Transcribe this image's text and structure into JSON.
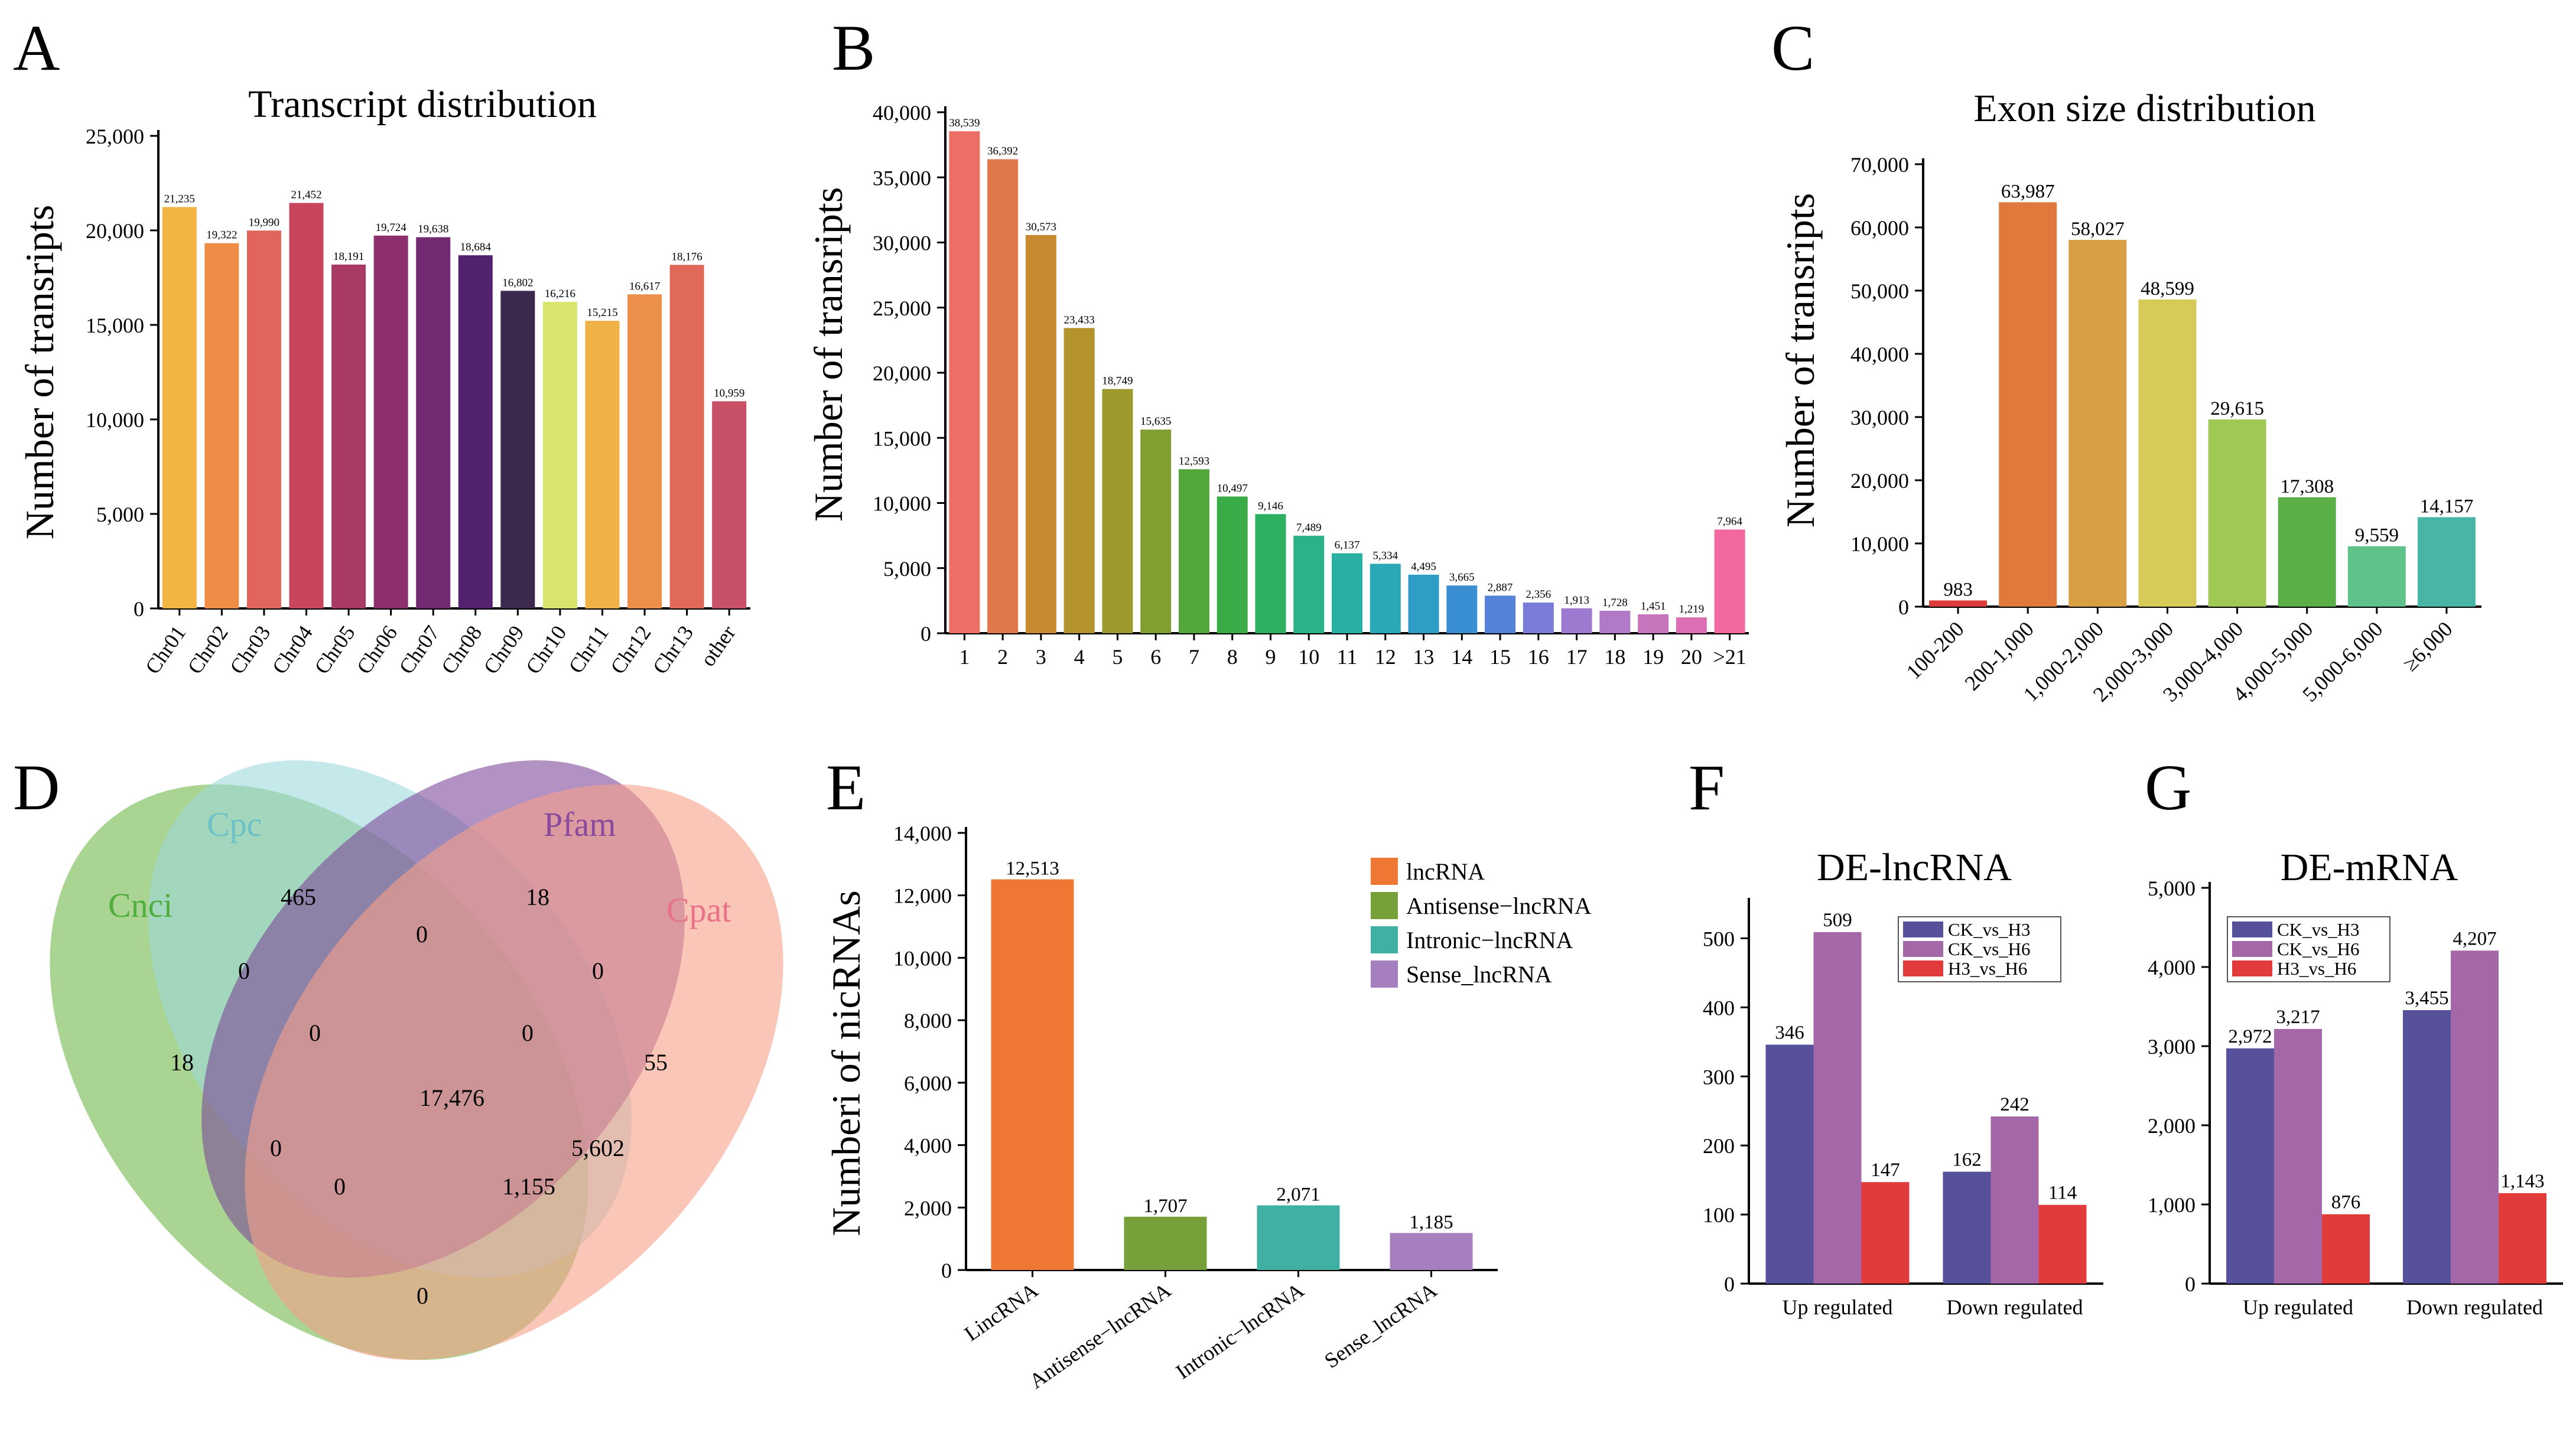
{
  "panels": {
    "A": {
      "letter": "A"
    },
    "B": {
      "letter": "B"
    },
    "C": {
      "letter": "C"
    },
    "D": {
      "letter": "D"
    },
    "E": {
      "letter": "E"
    },
    "F": {
      "letter": "F"
    },
    "G": {
      "letter": "G"
    }
  },
  "chart_data": [
    {
      "id": "A",
      "type": "bar",
      "title": "Transcript distribution",
      "xlabel": "",
      "ylabel": "Number of transripts",
      "ylim": [
        0,
        25000
      ],
      "yticks": [
        0,
        5000,
        10000,
        15000,
        20000,
        25000
      ],
      "ytick_labels": [
        "0",
        "5,000",
        "10,000",
        "15,000",
        "20,000",
        "25,000"
      ],
      "categories": [
        "Chr01",
        "Chr02",
        "Chr03",
        "Chr04",
        "Chr05",
        "Chr06",
        "Chr07",
        "Chr08",
        "Chr09",
        "Chr10",
        "Chr11",
        "Chr12",
        "Chr13",
        "other"
      ],
      "values": [
        21235,
        19322,
        19990,
        21452,
        18191,
        19724,
        19638,
        18684,
        16802,
        16216,
        15215,
        16617,
        18176,
        10959
      ],
      "value_labels": [
        "21,235",
        "19,322",
        "19,990",
        "21,452",
        "18,191",
        "19,724",
        "19,638",
        "18,684",
        "16,802",
        "16,216",
        "15,215",
        "16,617",
        "18,176",
        "10,959"
      ],
      "colors": [
        "#f2b541",
        "#ef8d47",
        "#e0655a",
        "#c8465d",
        "#a93a66",
        "#8e2f6d",
        "#722a72",
        "#52226f",
        "#3b2a4e",
        "#d8e46b",
        "#f0b246",
        "#ec8f4a",
        "#e06a5a",
        "#c95167"
      ]
    },
    {
      "id": "B",
      "type": "bar",
      "title": "",
      "xlabel": "",
      "ylabel": "Number of transripts",
      "ylim": [
        0,
        40000
      ],
      "yticks": [
        0,
        5000,
        10000,
        15000,
        20000,
        25000,
        30000,
        35000,
        40000
      ],
      "ytick_labels": [
        "0",
        "5,000",
        "10,000",
        "15,000",
        "20,000",
        "25,000",
        "30,000",
        "35,000",
        "40,000"
      ],
      "categories": [
        "1",
        "2",
        "3",
        "4",
        "5",
        "6",
        "7",
        "8",
        "9",
        "10",
        "11",
        "12",
        "13",
        "14",
        "15",
        "16",
        "17",
        "18",
        "19",
        "20",
        ">21"
      ],
      "values": [
        38539,
        36392,
        30573,
        23433,
        18749,
        15635,
        12593,
        10497,
        9146,
        7489,
        6137,
        5334,
        4495,
        3665,
        2887,
        2356,
        1913,
        1728,
        1451,
        1219,
        7964
      ],
      "value_labels": [
        "38,539",
        "36,392",
        "30,573",
        "23,433",
        "18,749",
        "15,635",
        "12,593",
        "10,497",
        "9,146",
        "7,489",
        "6,137",
        "5,334",
        "4,495",
        "3,665",
        "2,887",
        "2,356",
        "1,913",
        "1,728",
        "1,451",
        "1,219",
        "7,964"
      ],
      "colors": [
        "#ec6f66",
        "#e0784c",
        "#c9892f",
        "#b4922c",
        "#9c9a2d",
        "#7fa031",
        "#54a73a",
        "#3aac47",
        "#2eb063",
        "#2bb289",
        "#29b0a3",
        "#2aa8b5",
        "#2e9ec6",
        "#3a8fd2",
        "#5482d8",
        "#7a7bd6",
        "#9b7ad0",
        "#b279c8",
        "#c775bd",
        "#dc6fb3",
        "#f268a0"
      ]
    },
    {
      "id": "C",
      "type": "bar",
      "title": "Exon size distribution",
      "xlabel": "",
      "ylabel": "Number of transripts",
      "ylim": [
        0,
        70000
      ],
      "yticks": [
        0,
        10000,
        20000,
        30000,
        40000,
        50000,
        60000,
        70000
      ],
      "ytick_labels": [
        "0",
        "10,000",
        "20,000",
        "30,000",
        "40,000",
        "50,000",
        "60,000",
        "70,000"
      ],
      "categories": [
        "100-200",
        "200-1,000",
        "1,000-2,000",
        "2,000-3,000",
        "3,000-4,000",
        "4,000-5,000",
        "5,000-6,000",
        "≥6,000"
      ],
      "values": [
        983,
        63987,
        58027,
        48599,
        29615,
        17308,
        9559,
        14157
      ],
      "value_labels": [
        "983",
        "63,987",
        "58,027",
        "48,599",
        "29,615",
        "17,308",
        "9,559",
        "14,157"
      ],
      "colors": [
        "#de3b3b",
        "#e1793d",
        "#d99f43",
        "#d6cb56",
        "#9fc855",
        "#5aaf47",
        "#5ec28a",
        "#49b5a6"
      ]
    },
    {
      "id": "E",
      "type": "bar",
      "title": "",
      "xlabel": "",
      "ylabel": "Numberi of nicRNAs",
      "ylim": [
        0,
        14000
      ],
      "yticks": [
        0,
        2000,
        4000,
        6000,
        8000,
        10000,
        12000,
        14000
      ],
      "ytick_labels": [
        "0",
        "2,000",
        "4,000",
        "6,000",
        "8,000",
        "10,000",
        "12,000",
        "14,000"
      ],
      "categories": [
        "LincRNA",
        "Antisense−lncRNA",
        "Intronic−lncRNA",
        "Sense_lncRNA"
      ],
      "values": [
        12513,
        1707,
        2071,
        1185
      ],
      "value_labels": [
        "12,513",
        "1,707",
        "2,071",
        "1,185"
      ],
      "colors": [
        "#ed7733",
        "#77a03a",
        "#3fb0a2",
        "#a57fbe"
      ],
      "legend": [
        "lncRNA",
        "Antisense−lncRNA",
        "Intronic−lncRNA",
        "Sense_lncRNA"
      ],
      "legend_position": "top-right"
    },
    {
      "id": "F",
      "type": "bar",
      "title": "DE-lncRNA",
      "xlabel": "",
      "ylabel": "",
      "ylim": [
        0,
        550
      ],
      "yticks": [
        0,
        100,
        200,
        300,
        400,
        500
      ],
      "ytick_labels": [
        "0",
        "100",
        "200",
        "300",
        "400",
        "500"
      ],
      "categories": [
        "Up regulated",
        "Down regulated"
      ],
      "series": [
        {
          "name": "CK_vs_H3",
          "values": [
            346,
            162
          ],
          "labels": [
            "346",
            "162"
          ],
          "color": "#56519a"
        },
        {
          "name": "CK_vs_H6",
          "values": [
            509,
            242
          ],
          "labels": [
            "509",
            "242"
          ],
          "color": "#a467a7"
        },
        {
          "name": "H3_vs_H6",
          "values": [
            147,
            114
          ],
          "labels": [
            "147",
            "114"
          ],
          "color": "#e23b3b"
        }
      ],
      "legend_position": "top-center"
    },
    {
      "id": "G",
      "type": "bar",
      "title": "DE-mRNA",
      "xlabel": "",
      "ylabel": "",
      "ylim": [
        0,
        5000
      ],
      "yticks": [
        0,
        1000,
        2000,
        3000,
        4000,
        5000
      ],
      "ytick_labels": [
        "0",
        "1,000",
        "2,000",
        "3,000",
        "4,000",
        "5,000"
      ],
      "categories": [
        "Up regulated",
        "Down regulated"
      ],
      "series": [
        {
          "name": "CK_vs_H3",
          "values": [
            2972,
            3455
          ],
          "labels": [
            "2,972",
            "3,455"
          ],
          "color": "#56519a"
        },
        {
          "name": "CK_vs_H6",
          "values": [
            3217,
            4207
          ],
          "labels": [
            "3,217",
            "4,207"
          ],
          "color": "#a467a7"
        },
        {
          "name": "H3_vs_H6",
          "values": [
            876,
            1143
          ],
          "labels": [
            "876",
            "1,143"
          ],
          "color": "#e23b3b"
        }
      ],
      "legend_position": "top-left"
    }
  ],
  "venn": {
    "sets": [
      {
        "name": "Cnci",
        "color": "#6bb84c",
        "fill": "#8cc66e"
      },
      {
        "name": "Cpc",
        "color": "#7fc8cd",
        "fill": "#9fd8dc"
      },
      {
        "name": "Pfam",
        "color": "#8a4a9b",
        "fill": "#8c5aa4"
      },
      {
        "name": "Cpat",
        "color": "#e9718a",
        "fill": "#f5a794"
      }
    ],
    "regions": [
      {
        "region": "Cpc only",
        "value": "465"
      },
      {
        "region": "Pfam only",
        "value": "18"
      },
      {
        "region": "Cnci only",
        "value": "18"
      },
      {
        "region": "Cpat only",
        "value": "55"
      },
      {
        "region": "Cpc∩Pfam",
        "value": "0"
      },
      {
        "region": "Cnci∩Cpc",
        "value": "0"
      },
      {
        "region": "Pfam∩Cpat",
        "value": "0"
      },
      {
        "region": "Cnci∩Cpc∩Pfam",
        "value": "0"
      },
      {
        "region": "Cpc∩Pfam∩Cpat",
        "value": "0"
      },
      {
        "region": "All four",
        "value": "17,476"
      },
      {
        "region": "Cnci∩Pfam",
        "value": "0"
      },
      {
        "region": "Pfam∩Cpat∩Cnci",
        "value": "0"
      },
      {
        "region": "Cpc∩Cpat",
        "value": "5,602"
      },
      {
        "region": "Cnci∩Cpc∩Cpat",
        "value": "1,155"
      },
      {
        "region": "Cnci∩Cpat",
        "value": "0"
      }
    ]
  }
}
